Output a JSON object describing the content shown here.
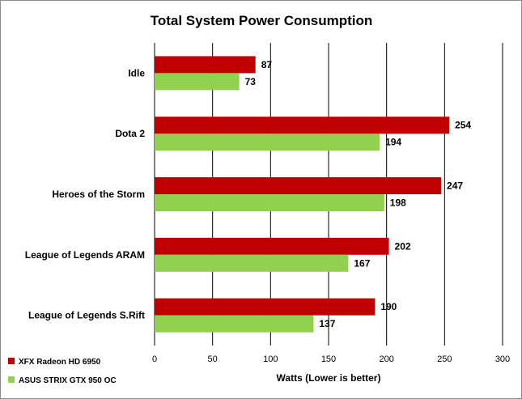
{
  "chart_data": {
    "type": "bar",
    "orientation": "horizontal",
    "title": "Total System Power Consumption",
    "xlabel": "Watts (Lower is better)",
    "ylabel": "",
    "xlim": [
      0,
      300
    ],
    "ticks": [
      0,
      50,
      100,
      150,
      200,
      250,
      300
    ],
    "grid": true,
    "legend_position": "bottom-left",
    "categories": [
      "Idle",
      "Dota 2",
      "Heroes of the Storm",
      "League of Legends ARAM",
      "League of Legends S.Rift"
    ],
    "series": [
      {
        "name": "XFX Radeon HD 6950",
        "color": "#c00000",
        "values": [
          87,
          254,
          247,
          202,
          190
        ]
      },
      {
        "name": "ASUS STRIX GTX 950 OC",
        "color": "#92d050",
        "values": [
          73,
          194,
          198,
          167,
          137
        ]
      }
    ]
  }
}
